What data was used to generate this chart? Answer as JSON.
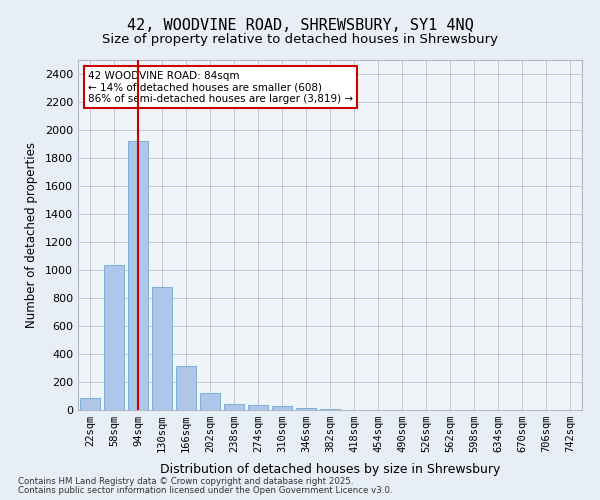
{
  "title_line1": "42, WOODVINE ROAD, SHREWSBURY, SY1 4NQ",
  "title_line2": "Size of property relative to detached houses in Shrewsbury",
  "xlabel": "Distribution of detached houses by size in Shrewsbury",
  "ylabel": "Number of detached properties",
  "bar_color": "#aec6e8",
  "bar_edge_color": "#5a9fd4",
  "categories": [
    "22sqm",
    "58sqm",
    "94sqm",
    "130sqm",
    "166sqm",
    "202sqm",
    "238sqm",
    "274sqm",
    "310sqm",
    "346sqm",
    "382sqm",
    "418sqm",
    "454sqm",
    "490sqm",
    "526sqm",
    "562sqm",
    "598sqm",
    "634sqm",
    "670sqm",
    "706sqm",
    "742sqm"
  ],
  "values": [
    85,
    1035,
    1925,
    880,
    315,
    120,
    45,
    35,
    30,
    15,
    5,
    0,
    0,
    0,
    0,
    0,
    0,
    0,
    0,
    0,
    0
  ],
  "ylim": [
    0,
    2500
  ],
  "yticks": [
    0,
    200,
    400,
    600,
    800,
    1000,
    1200,
    1400,
    1600,
    1800,
    2000,
    2200,
    2400
  ],
  "vline_x": 2,
  "vline_color": "#cc0000",
  "annotation_text": "42 WOODVINE ROAD: 84sqm\n← 14% of detached houses are smaller (608)\n86% of semi-detached houses are larger (3,819) →",
  "annotation_box_color": "#ffffff",
  "annotation_box_edge": "#cc0000",
  "bg_color": "#e8eef5",
  "plot_bg_color": "#f0f4f8",
  "footer_line1": "Contains HM Land Registry data © Crown copyright and database right 2025.",
  "footer_line2": "Contains public sector information licensed under the Open Government Licence v3.0."
}
